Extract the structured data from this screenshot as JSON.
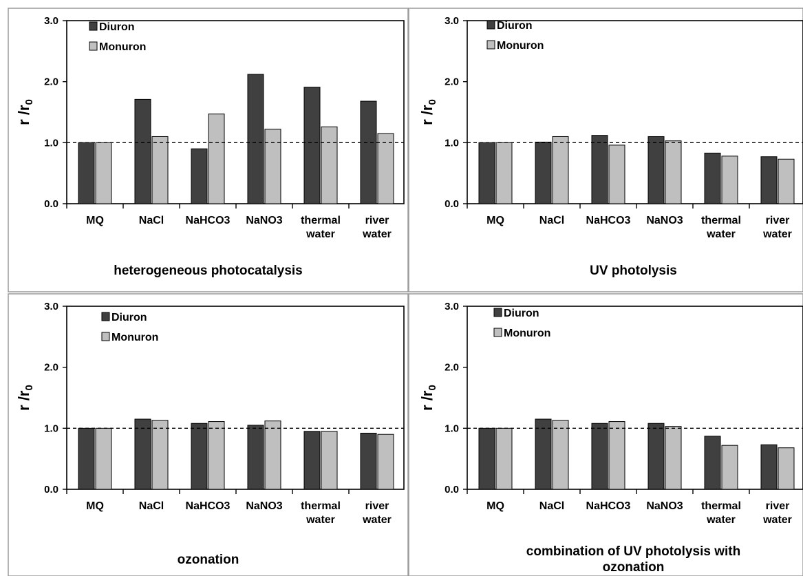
{
  "colors": {
    "Diuron": "#404040",
    "Monuron": "#bfbfbf"
  },
  "chart_data": [
    {
      "type": "bar",
      "title": "heterogeneous photocatalysis",
      "ylabel": "r /r",
      "ylabel_subscript": "0",
      "ylim": [
        0,
        3
      ],
      "yticks": [
        "0.0",
        "1.0",
        "2.0",
        "3.0"
      ],
      "reference_line": 1.0,
      "legend_position": "top-left",
      "categories": [
        [
          "MQ"
        ],
        [
          "NaCl"
        ],
        [
          "NaHCO3"
        ],
        [
          "NaNO3"
        ],
        [
          "thermal",
          "water"
        ],
        [
          "river",
          "water"
        ]
      ],
      "series": [
        {
          "name": "Diuron",
          "values": [
            1.0,
            1.71,
            0.9,
            2.12,
            1.91,
            1.68
          ]
        },
        {
          "name": "Monuron",
          "values": [
            1.0,
            1.1,
            1.47,
            1.22,
            1.26,
            1.15
          ]
        }
      ]
    },
    {
      "type": "bar",
      "title": "UV photolysis",
      "ylabel": "r /r",
      "ylabel_subscript": "0",
      "ylim": [
        0,
        3
      ],
      "yticks": [
        "0.0",
        "1.0",
        "2.0",
        "3.0"
      ],
      "reference_line": 1.0,
      "legend_position": "top-left",
      "categories": [
        [
          "MQ"
        ],
        [
          "NaCl"
        ],
        [
          "NaHCO3"
        ],
        [
          "NaNO3"
        ],
        [
          "thermal",
          "water"
        ],
        [
          "river",
          "water"
        ]
      ],
      "series": [
        {
          "name": "Diuron",
          "values": [
            1.0,
            1.01,
            1.12,
            1.1,
            0.83,
            0.77
          ]
        },
        {
          "name": "Monuron",
          "values": [
            1.0,
            1.1,
            0.96,
            1.03,
            0.78,
            0.73
          ]
        }
      ]
    },
    {
      "type": "bar",
      "title": "ozonation",
      "ylabel": "r /r",
      "ylabel_subscript": "0",
      "ylim": [
        0,
        3
      ],
      "yticks": [
        "0.0",
        "1.0",
        "2.0",
        "3.0"
      ],
      "reference_line": 1.0,
      "legend_position": "top-left",
      "categories": [
        [
          "MQ"
        ],
        [
          "NaCl"
        ],
        [
          "NaHCO3"
        ],
        [
          "NaNO3"
        ],
        [
          "thermal",
          "water"
        ],
        [
          "river",
          "water"
        ]
      ],
      "series": [
        {
          "name": "Diuron",
          "values": [
            1.0,
            1.15,
            1.08,
            1.05,
            0.95,
            0.92
          ]
        },
        {
          "name": "Monuron",
          "values": [
            1.0,
            1.13,
            1.11,
            1.12,
            0.95,
            0.9
          ]
        }
      ]
    },
    {
      "type": "bar",
      "title": "combination of UV photolysis  with ozonation",
      "title_lines": [
        "combination of UV photolysis  with",
        "ozonation"
      ],
      "ylabel": "r /r",
      "ylabel_subscript": "0",
      "ylim": [
        0,
        3
      ],
      "yticks": [
        "0.0",
        "1.0",
        "2.0",
        "3.0"
      ],
      "reference_line": 1.0,
      "legend_position": "top-left",
      "categories": [
        [
          "MQ"
        ],
        [
          "NaCl"
        ],
        [
          "NaHCO3"
        ],
        [
          "NaNO3"
        ],
        [
          "thermal",
          "water"
        ],
        [
          "river",
          "water"
        ]
      ],
      "series": [
        {
          "name": "Diuron",
          "values": [
            1.0,
            1.15,
            1.08,
            1.08,
            0.87,
            0.73
          ]
        },
        {
          "name": "Monuron",
          "values": [
            1.0,
            1.13,
            1.11,
            1.03,
            0.72,
            0.68
          ]
        }
      ]
    }
  ]
}
